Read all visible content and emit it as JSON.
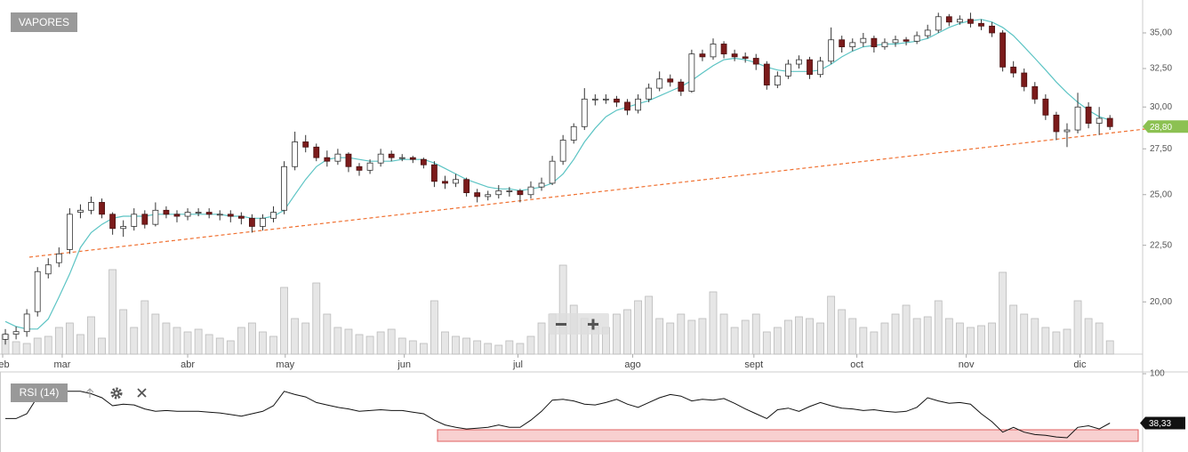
{
  "chart_data": [
    {
      "type": "candlestick",
      "title": "VAPORES",
      "log": true,
      "ylim": [
        17.94,
        37.48
      ],
      "yticks": [
        {
          "value": 20,
          "label": "20,00"
        },
        {
          "value": 22.5,
          "label": "22,50"
        },
        {
          "value": 25,
          "label": "25,00"
        },
        {
          "value": 27.5,
          "label": "27,50"
        },
        {
          "value": 30,
          "label": "30,00"
        },
        {
          "value": 32.5,
          "label": "32,50"
        },
        {
          "value": 35,
          "label": "35,00"
        }
      ],
      "xlim": [
        -0.5,
        106.05
      ],
      "xticks": [
        {
          "value": -0.25,
          "label": "feb"
        },
        {
          "value": 5.3,
          "label": "mar"
        },
        {
          "value": 17.0,
          "label": "abr"
        },
        {
          "value": 26.1,
          "label": "may"
        },
        {
          "value": 37.2,
          "label": "jun"
        },
        {
          "value": 47.8,
          "label": "jul"
        },
        {
          "value": 58.5,
          "label": "ago"
        },
        {
          "value": 69.8,
          "label": "sept"
        },
        {
          "value": 79.4,
          "label": "oct"
        },
        {
          "value": 89.6,
          "label": "nov"
        },
        {
          "value": 100.2,
          "label": "dic"
        }
      ],
      "up_color": "#ffffff",
      "down_color": "#7b1b1b",
      "ohlc": [
        [
          18.5,
          18.9,
          18.3,
          18.7
        ],
        [
          18.7,
          19.0,
          18.5,
          18.8
        ],
        [
          18.8,
          19.7,
          18.6,
          19.5
        ],
        [
          19.6,
          21.5,
          19.4,
          21.3
        ],
        [
          21.2,
          21.9,
          21.0,
          21.6
        ],
        [
          21.7,
          22.4,
          21.5,
          22.1
        ],
        [
          22.3,
          24.3,
          22.1,
          24.0
        ],
        [
          24.1,
          24.5,
          23.8,
          24.2
        ],
        [
          24.2,
          24.9,
          24.0,
          24.6
        ],
        [
          24.6,
          24.8,
          23.8,
          24.0
        ],
        [
          24.0,
          24.1,
          23.0,
          23.3
        ],
        [
          23.3,
          23.7,
          22.9,
          23.4
        ],
        [
          23.4,
          24.3,
          23.2,
          24.0
        ],
        [
          24.0,
          24.2,
          23.3,
          23.5
        ],
        [
          23.5,
          24.6,
          23.4,
          24.2
        ],
        [
          24.2,
          24.4,
          23.8,
          24.0
        ],
        [
          24.0,
          24.2,
          23.6,
          23.9
        ],
        [
          23.9,
          24.3,
          23.7,
          24.1
        ],
        [
          24.1,
          24.3,
          23.9,
          24.1
        ],
        [
          24.1,
          24.3,
          23.8,
          24.0
        ],
        [
          24.0,
          24.2,
          23.7,
          24.0
        ],
        [
          24.0,
          24.2,
          23.6,
          23.9
        ],
        [
          23.9,
          24.1,
          23.5,
          23.8
        ],
        [
          23.8,
          24.0,
          23.1,
          23.4
        ],
        [
          23.4,
          24.0,
          23.2,
          23.8
        ],
        [
          23.8,
          24.4,
          23.6,
          24.1
        ],
        [
          24.2,
          26.8,
          24.0,
          26.5
        ],
        [
          26.5,
          28.5,
          26.3,
          27.9
        ],
        [
          27.9,
          28.3,
          27.3,
          27.6
        ],
        [
          27.6,
          27.8,
          26.8,
          27.0
        ],
        [
          27.0,
          27.4,
          26.5,
          26.8
        ],
        [
          26.8,
          27.5,
          26.6,
          27.2
        ],
        [
          27.2,
          27.3,
          26.2,
          26.5
        ],
        [
          26.5,
          26.7,
          26.0,
          26.3
        ],
        [
          26.3,
          26.9,
          26.1,
          26.7
        ],
        [
          26.7,
          27.5,
          26.5,
          27.2
        ],
        [
          27.2,
          27.4,
          26.8,
          27.0
        ],
        [
          27.0,
          27.2,
          26.8,
          27.0
        ],
        [
          27.0,
          27.1,
          26.7,
          26.9
        ],
        [
          26.9,
          27.0,
          26.4,
          26.6
        ],
        [
          26.6,
          26.8,
          25.4,
          25.7
        ],
        [
          25.7,
          26.0,
          25.3,
          25.6
        ],
        [
          25.6,
          26.1,
          25.4,
          25.8
        ],
        [
          25.8,
          25.9,
          24.9,
          25.1
        ],
        [
          25.1,
          25.3,
          24.6,
          24.9
        ],
        [
          24.9,
          25.2,
          24.7,
          25.0
        ],
        [
          25.0,
          25.5,
          24.8,
          25.2
        ],
        [
          25.2,
          25.4,
          24.9,
          25.2
        ],
        [
          25.2,
          25.3,
          24.6,
          25.0
        ],
        [
          25.0,
          25.7,
          24.8,
          25.4
        ],
        [
          25.4,
          25.9,
          25.2,
          25.6
        ],
        [
          25.6,
          27.1,
          25.5,
          26.8
        ],
        [
          26.8,
          28.3,
          26.6,
          28.0
        ],
        [
          28.0,
          29.0,
          27.8,
          28.8
        ],
        [
          28.8,
          31.2,
          28.6,
          30.5
        ],
        [
          30.5,
          30.8,
          30.1,
          30.5
        ],
        [
          30.5,
          30.8,
          30.2,
          30.5
        ],
        [
          30.5,
          30.7,
          30.0,
          30.3
        ],
        [
          30.3,
          30.5,
          29.5,
          29.8
        ],
        [
          29.8,
          30.8,
          29.6,
          30.5
        ],
        [
          30.5,
          31.5,
          30.3,
          31.2
        ],
        [
          31.2,
          32.3,
          31.0,
          31.8
        ],
        [
          31.8,
          32.1,
          31.3,
          31.6
        ],
        [
          31.6,
          31.8,
          30.7,
          31.0
        ],
        [
          31.0,
          33.8,
          30.9,
          33.5
        ],
        [
          33.5,
          33.8,
          33.0,
          33.3
        ],
        [
          33.3,
          34.6,
          33.1,
          34.2
        ],
        [
          34.2,
          34.4,
          33.2,
          33.5
        ],
        [
          33.5,
          33.8,
          33.0,
          33.3
        ],
        [
          33.3,
          33.6,
          32.9,
          33.2
        ],
        [
          33.2,
          33.5,
          32.4,
          32.8
        ],
        [
          32.8,
          33.0,
          31.1,
          31.4
        ],
        [
          31.4,
          32.3,
          31.2,
          32.0
        ],
        [
          32.0,
          33.1,
          31.8,
          32.8
        ],
        [
          32.8,
          33.4,
          32.5,
          33.1
        ],
        [
          33.1,
          33.3,
          31.8,
          32.1
        ],
        [
          32.1,
          33.3,
          31.9,
          33.0
        ],
        [
          33.0,
          35.4,
          32.8,
          34.5
        ],
        [
          34.5,
          34.8,
          33.6,
          34.0
        ],
        [
          34.0,
          34.6,
          33.7,
          34.3
        ],
        [
          34.3,
          35.0,
          34.0,
          34.6
        ],
        [
          34.6,
          34.8,
          33.6,
          34.0
        ],
        [
          34.0,
          34.6,
          33.8,
          34.3
        ],
        [
          34.3,
          34.8,
          34.0,
          34.5
        ],
        [
          34.5,
          34.7,
          34.1,
          34.4
        ],
        [
          34.4,
          35.1,
          34.2,
          34.8
        ],
        [
          34.8,
          35.6,
          34.6,
          35.2
        ],
        [
          35.2,
          36.5,
          35.0,
          36.2
        ],
        [
          36.2,
          36.4,
          35.5,
          35.8
        ],
        [
          35.8,
          36.3,
          35.6,
          36.0
        ],
        [
          36.0,
          36.5,
          35.4,
          35.7
        ],
        [
          35.7,
          36.0,
          35.2,
          35.5
        ],
        [
          35.5,
          35.8,
          34.7,
          35.0
        ],
        [
          35.0,
          35.2,
          32.3,
          32.6
        ],
        [
          32.6,
          33.0,
          31.9,
          32.2
        ],
        [
          32.2,
          32.5,
          31.0,
          31.3
        ],
        [
          31.3,
          31.6,
          30.2,
          30.5
        ],
        [
          30.5,
          30.8,
          29.2,
          29.5
        ],
        [
          29.5,
          29.7,
          28.0,
          28.5
        ],
        [
          28.5,
          29.0,
          27.6,
          28.6
        ],
        [
          28.6,
          30.9,
          28.4,
          30.0
        ],
        [
          30.0,
          30.3,
          28.7,
          29.0
        ],
        [
          29.0,
          30.0,
          28.3,
          29.3
        ],
        [
          29.3,
          29.5,
          28.6,
          28.8
        ]
      ],
      "last_label": "28,80",
      "last_color": "#8cc152",
      "ma_color": "#5cc4c4",
      "ma": [
        19.2,
        19.0,
        18.9,
        18.9,
        19.3,
        20.2,
        21.2,
        22.4,
        23.1,
        23.5,
        23.8,
        23.9,
        23.9,
        23.9,
        24.0,
        24.0,
        24.0,
        24.0,
        24.0,
        24.0,
        24.0,
        23.9,
        23.9,
        23.8,
        23.8,
        23.9,
        24.2,
        25.0,
        25.8,
        26.5,
        26.9,
        27.0,
        27.0,
        26.9,
        26.8,
        26.8,
        26.8,
        26.9,
        26.9,
        26.9,
        26.7,
        26.4,
        26.1,
        25.8,
        25.6,
        25.4,
        25.3,
        25.3,
        25.2,
        25.3,
        25.4,
        25.6,
        26.1,
        26.9,
        27.9,
        28.7,
        29.4,
        29.8,
        30.0,
        30.2,
        30.4,
        30.7,
        31.0,
        31.3,
        31.7,
        32.2,
        32.7,
        33.1,
        33.2,
        33.1,
        32.9,
        32.6,
        32.4,
        32.3,
        32.3,
        32.3,
        32.4,
        32.8,
        33.3,
        33.7,
        34.0,
        34.1,
        34.2,
        34.2,
        34.3,
        34.4,
        34.6,
        35.0,
        35.4,
        35.7,
        35.9,
        36.0,
        35.8,
        35.4,
        34.8,
        34.0,
        33.2,
        32.4,
        31.6,
        30.9,
        30.3,
        29.8,
        29.4,
        29.2
      ],
      "volume_lim": [
        0,
        100
      ],
      "volume_color": "#e6e6e6",
      "volume": [
        22,
        14,
        12,
        18,
        20,
        30,
        35,
        22,
        42,
        18,
        95,
        50,
        30,
        60,
        45,
        35,
        30,
        25,
        28,
        22,
        18,
        15,
        30,
        35,
        25,
        20,
        75,
        40,
        35,
        80,
        45,
        30,
        28,
        22,
        20,
        25,
        28,
        18,
        15,
        12,
        60,
        25,
        20,
        18,
        15,
        12,
        10,
        15,
        12,
        20,
        35,
        45,
        100,
        55,
        40,
        35,
        30,
        45,
        50,
        60,
        65,
        40,
        35,
        45,
        38,
        40,
        70,
        45,
        30,
        38,
        45,
        25,
        30,
        38,
        42,
        40,
        35,
        65,
        50,
        40,
        30,
        25,
        35,
        45,
        55,
        40,
        42,
        60,
        40,
        35,
        30,
        32,
        35,
        92,
        55,
        45,
        40,
        30,
        25,
        28,
        60,
        40,
        35,
        15
      ]
    },
    {
      "type": "line",
      "title": "RSI (14)",
      "color": "#111111",
      "ylim": [
        0,
        100
      ],
      "yticks": [
        100
      ],
      "values": [
        44,
        44,
        50,
        71,
        75,
        78,
        78,
        78,
        75,
        70,
        60,
        62,
        61,
        56,
        53,
        54,
        53,
        53,
        53,
        52,
        51,
        49,
        47,
        50,
        53,
        60,
        78,
        74,
        71,
        64,
        61,
        58,
        56,
        53,
        54,
        55,
        54,
        54,
        52,
        50,
        42,
        36,
        33,
        31,
        32,
        33,
        36,
        33,
        33,
        42,
        53,
        67,
        68,
        66,
        62,
        61,
        64,
        68,
        62,
        58,
        64,
        70,
        74,
        72,
        66,
        68,
        67,
        69,
        63,
        56,
        50,
        44,
        55,
        57,
        53,
        59,
        64,
        60,
        57,
        56,
        54,
        55,
        53,
        52,
        53,
        58,
        70,
        66,
        63,
        64,
        62,
        50,
        40,
        27,
        33,
        27,
        24,
        23,
        21,
        20,
        33,
        35,
        31,
        38.33
      ],
      "last_label": "38,33"
    }
  ]
}
